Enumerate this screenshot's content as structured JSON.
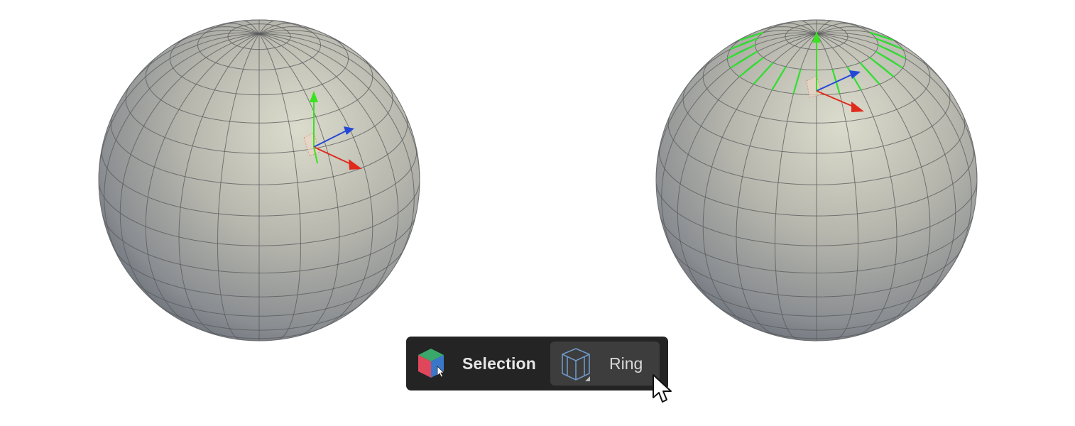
{
  "toolbar": {
    "mode": {
      "label": "Selection",
      "icon": "selection-cube-icon"
    },
    "tool": {
      "label": "Ring",
      "icon": "edge-ring-icon"
    }
  },
  "viewport": {
    "left_object": "sphere",
    "right_object": "sphere",
    "selection_color": "#2fe02f",
    "gizmo_colors": {
      "x": "#e02a1c",
      "y": "#39e21f",
      "z": "#2448d6"
    }
  }
}
